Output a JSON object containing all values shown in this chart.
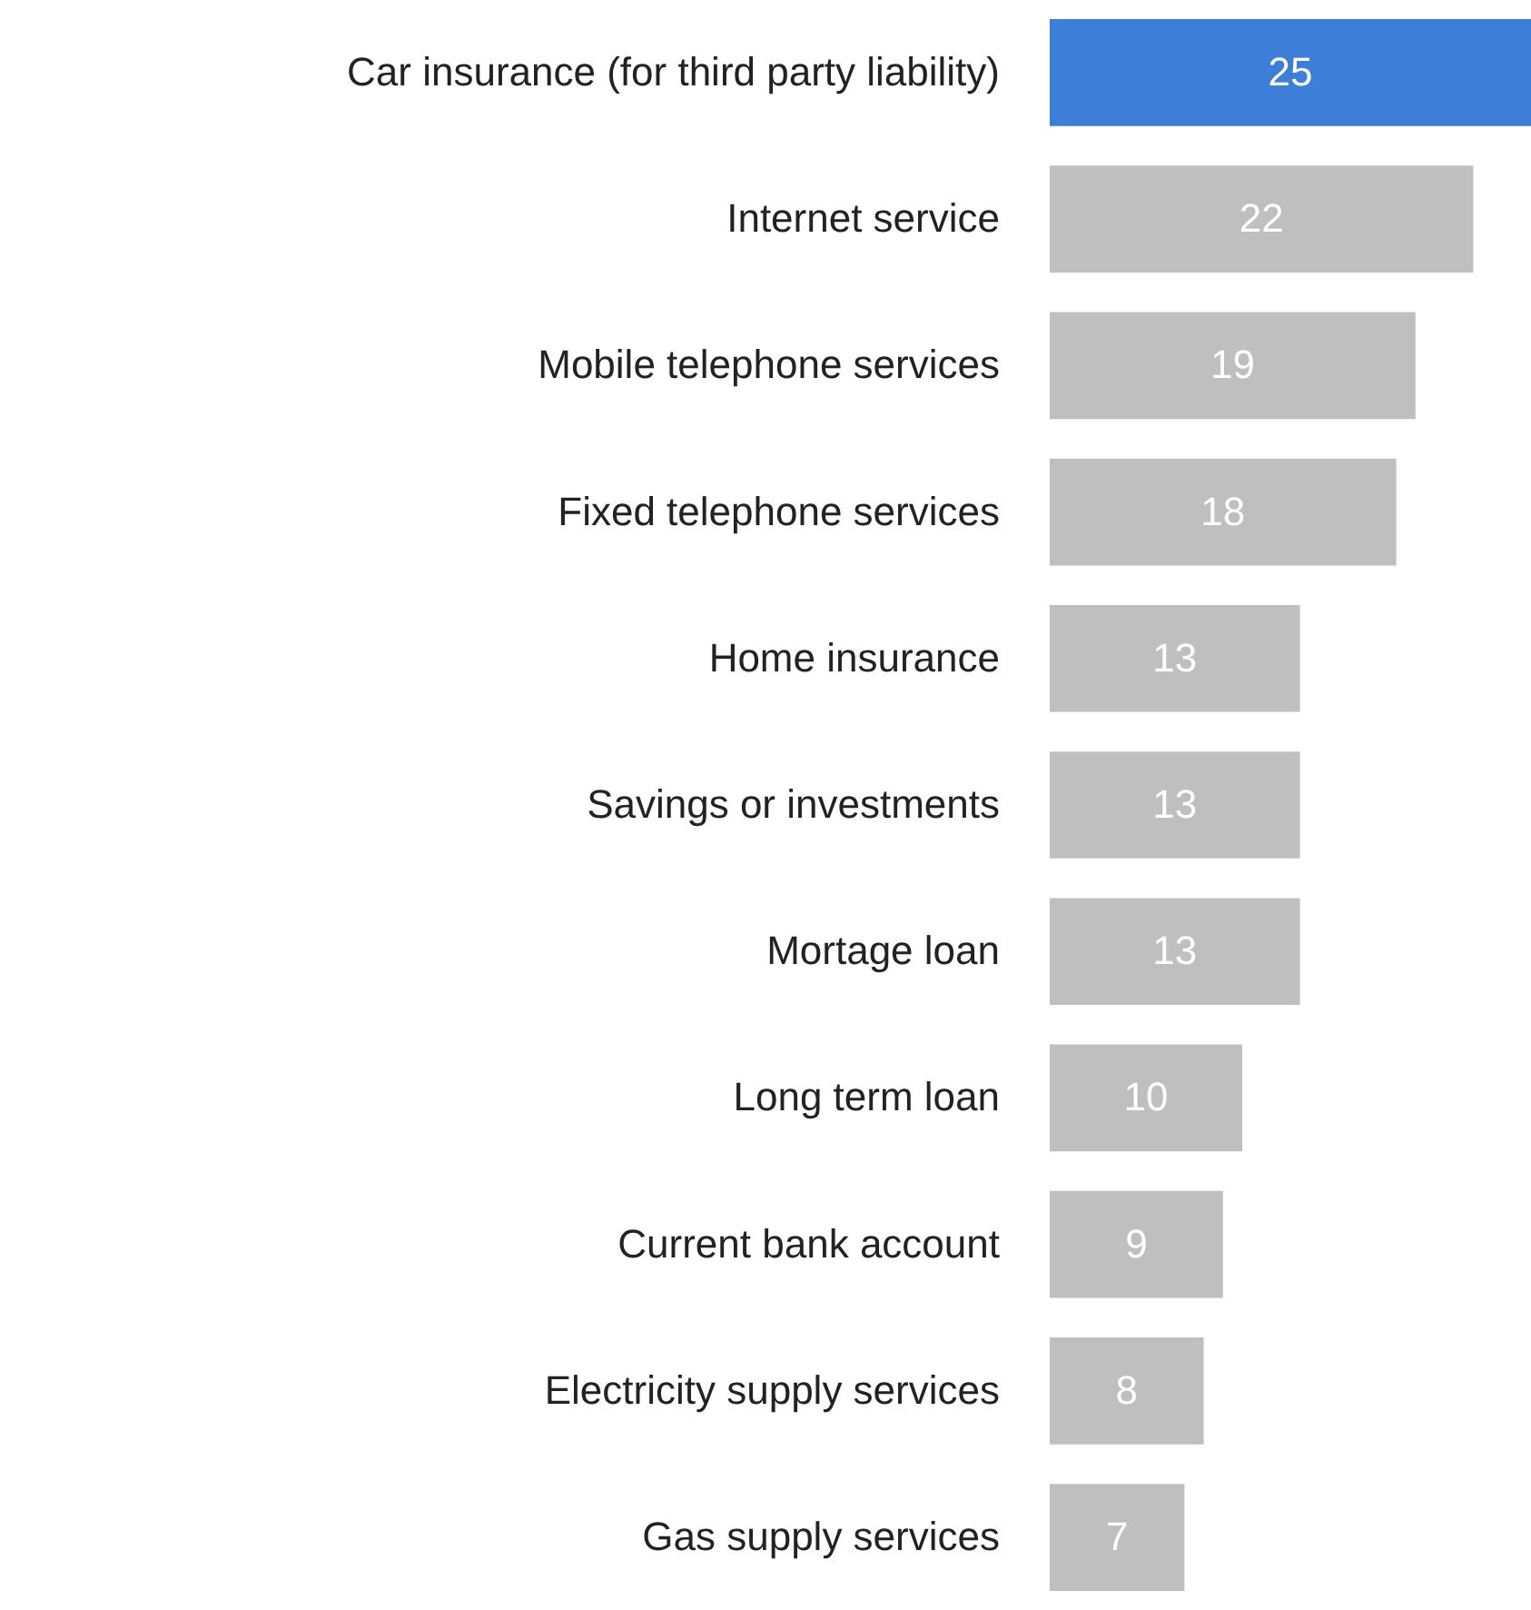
{
  "chart_data": {
    "type": "bar",
    "orientation": "horizontal",
    "data_labels": true,
    "categories": [
      "Car insurance (for third party liability)",
      "Internet service",
      "Mobile telephone services",
      "Fixed telephone services",
      "Home insurance",
      "Savings or investments",
      "Mortage loan",
      "Long term loan",
      "Current bank account",
      "Electricity supply services",
      "Gas supply services"
    ],
    "values": [
      25,
      22,
      19,
      18,
      13,
      13,
      13,
      10,
      9,
      8,
      7
    ],
    "colors": [
      "#3d7fd8",
      "#bfbfbf",
      "#bfbfbf",
      "#bfbfbf",
      "#bfbfbf",
      "#bfbfbf",
      "#bfbfbf",
      "#bfbfbf",
      "#bfbfbf",
      "#bfbfbf",
      "#bfbfbf"
    ]
  }
}
